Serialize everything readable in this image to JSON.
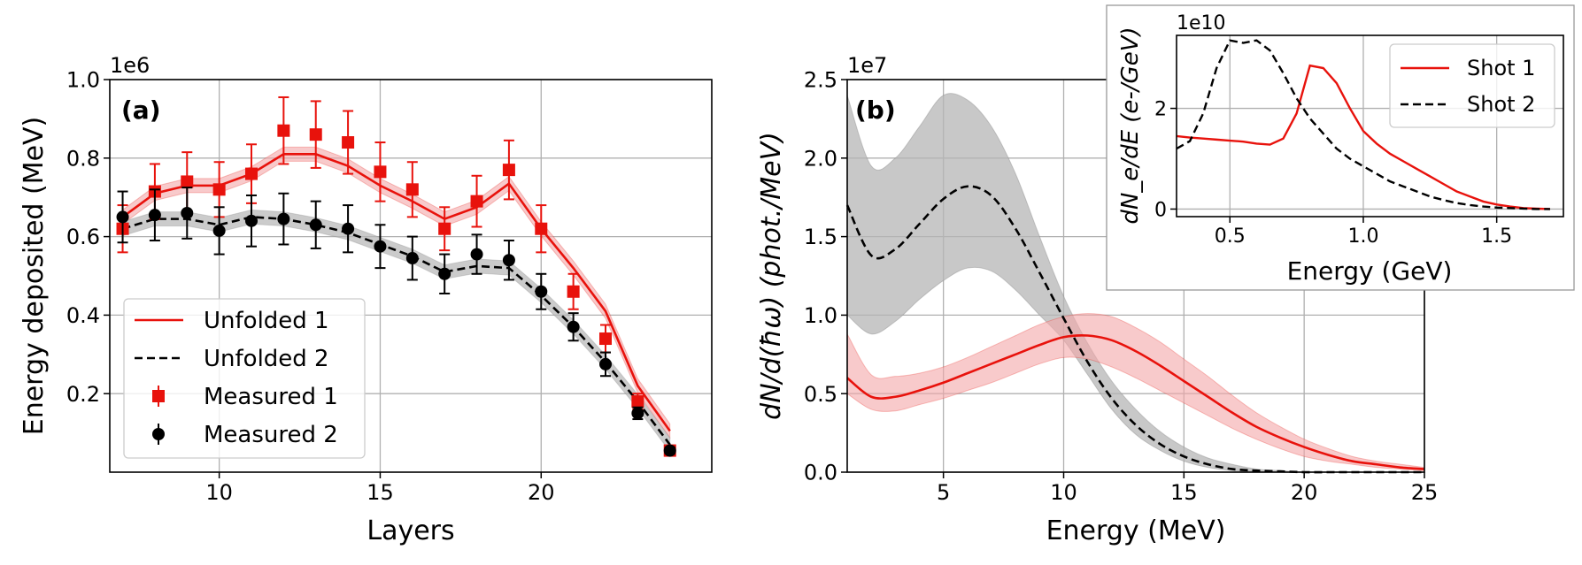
{
  "colors": {
    "red": "#e8120c",
    "red_band": "#f4a7a9",
    "black": "#000000",
    "gray_band": "#b5b5b5",
    "grid": "#b0b0b0"
  },
  "chart_data": [
    {
      "id": "panel-a",
      "type": "line",
      "panel_label": "(a)",
      "xlabel": "Layers",
      "ylabel": "Energy deposited (MeV)",
      "y_offset": "1e6",
      "xlim": [
        6.6,
        25.3
      ],
      "ylim": [
        0.0,
        1.0
      ],
      "xticks": [
        10,
        15,
        20
      ],
      "yticks": [
        0.2,
        0.4,
        0.6,
        0.8,
        1.0
      ],
      "ytick_labels": [
        "0.2",
        "0.4",
        "0.6",
        "0.8",
        "1.0"
      ],
      "legend": [
        "Unfolded 1",
        "Unfolded 2",
        "Measured 1",
        "Measured 2"
      ],
      "legend_position": "lower-left",
      "x": [
        7,
        8,
        9,
        10,
        11,
        12,
        13,
        14,
        15,
        16,
        17,
        18,
        19,
        20,
        21,
        22,
        23,
        24
      ],
      "unfolded_1": [
        0.65,
        0.71,
        0.73,
        0.73,
        0.76,
        0.81,
        0.81,
        0.78,
        0.73,
        0.69,
        0.645,
        0.675,
        0.735,
        0.62,
        0.52,
        0.41,
        0.22,
        0.105
      ],
      "unfolded_1_band": 0.018,
      "unfolded_2": [
        0.62,
        0.645,
        0.645,
        0.63,
        0.65,
        0.645,
        0.63,
        0.61,
        0.58,
        0.55,
        0.51,
        0.525,
        0.52,
        0.45,
        0.37,
        0.28,
        0.18,
        0.07
      ],
      "unfolded_2_band": 0.018,
      "measured_1": [
        0.62,
        0.715,
        0.74,
        0.72,
        0.76,
        0.87,
        0.86,
        0.84,
        0.765,
        0.72,
        0.62,
        0.69,
        0.77,
        0.62,
        0.46,
        0.34,
        0.18,
        0.055
      ],
      "measured_1_err": [
        0.06,
        0.07,
        0.075,
        0.07,
        0.075,
        0.085,
        0.085,
        0.08,
        0.075,
        0.07,
        0.055,
        0.065,
        0.075,
        0.06,
        0.045,
        0.035,
        0.02,
        0.01
      ],
      "measured_2": [
        0.65,
        0.655,
        0.66,
        0.615,
        0.64,
        0.645,
        0.63,
        0.62,
        0.575,
        0.545,
        0.505,
        0.555,
        0.54,
        0.46,
        0.37,
        0.275,
        0.15,
        0.055
      ],
      "measured_2_err": [
        0.065,
        0.065,
        0.065,
        0.06,
        0.065,
        0.065,
        0.06,
        0.06,
        0.055,
        0.055,
        0.05,
        0.05,
        0.05,
        0.045,
        0.035,
        0.03,
        0.015,
        0.008
      ]
    },
    {
      "id": "panel-b",
      "type": "line",
      "panel_label": "(b)",
      "xlabel": "Energy (MeV)",
      "ylabel": "dN/d(ħω) (phot./MeV)",
      "y_offset": "1e7",
      "xlim": [
        1,
        25
      ],
      "ylim": [
        0,
        2.5
      ],
      "xticks": [
        5,
        10,
        15,
        20,
        25
      ],
      "yticks": [
        0.0,
        0.5,
        1.0,
        1.5,
        2.0,
        2.5
      ],
      "ytick_labels": [
        "0.0",
        "0.5",
        "1.0",
        "1.5",
        "2.0",
        "2.5"
      ],
      "x": [
        1,
        2,
        3,
        4,
        5,
        6,
        7,
        8,
        9,
        10,
        11,
        12,
        13,
        14,
        15,
        16,
        17,
        18,
        19,
        20,
        21,
        22,
        23,
        24,
        25
      ],
      "shot_1": [
        0.6,
        0.48,
        0.48,
        0.52,
        0.57,
        0.63,
        0.69,
        0.75,
        0.81,
        0.86,
        0.87,
        0.84,
        0.77,
        0.68,
        0.58,
        0.48,
        0.38,
        0.29,
        0.22,
        0.16,
        0.11,
        0.07,
        0.05,
        0.03,
        0.02
      ],
      "shot_1_lower": [
        0.5,
        0.4,
        0.39,
        0.43,
        0.47,
        0.52,
        0.57,
        0.63,
        0.69,
        0.73,
        0.72,
        0.67,
        0.6,
        0.52,
        0.44,
        0.36,
        0.28,
        0.21,
        0.15,
        0.1,
        0.07,
        0.05,
        0.03,
        0.02,
        0.01
      ],
      "shot_1_upper": [
        0.88,
        0.62,
        0.61,
        0.63,
        0.67,
        0.73,
        0.8,
        0.87,
        0.94,
        0.99,
        1.01,
        0.99,
        0.92,
        0.83,
        0.72,
        0.61,
        0.49,
        0.38,
        0.29,
        0.21,
        0.15,
        0.1,
        0.07,
        0.05,
        0.03
      ],
      "shot_2": [
        1.7,
        1.38,
        1.42,
        1.58,
        1.74,
        1.82,
        1.76,
        1.55,
        1.27,
        0.98,
        0.7,
        0.47,
        0.3,
        0.18,
        0.1,
        0.05,
        0.02,
        0.01,
        0.005,
        0.0,
        0.0,
        0.0,
        0.0,
        0.0,
        0.0
      ],
      "shot_2_lower": [
        1.0,
        0.88,
        0.96,
        1.1,
        1.22,
        1.3,
        1.28,
        1.16,
        1.0,
        0.84,
        0.62,
        0.4,
        0.24,
        0.14,
        0.07,
        0.03,
        0.01,
        0.005,
        0.0,
        0.0,
        0.0,
        0.0,
        0.0,
        0.0,
        0.0
      ],
      "shot_2_upper": [
        2.4,
        1.95,
        2.0,
        2.2,
        2.4,
        2.37,
        2.2,
        1.9,
        1.5,
        1.12,
        0.82,
        0.58,
        0.4,
        0.26,
        0.16,
        0.09,
        0.05,
        0.02,
        0.01,
        0.0,
        0.0,
        0.0,
        0.0,
        0.0,
        0.0
      ]
    },
    {
      "id": "inset",
      "type": "line",
      "xlabel": "Energy (GeV)",
      "ylabel": "dN_e/dE (e-/GeV)",
      "y_offset": "1e10",
      "xlim": [
        0.3,
        1.75
      ],
      "ylim": [
        -0.15,
        3.45
      ],
      "xticks": [
        0.5,
        1.0,
        1.5
      ],
      "xtick_labels": [
        "0.5",
        "1.0",
        "1.5"
      ],
      "yticks": [
        0,
        2
      ],
      "ytick_labels": [
        "0",
        "2"
      ],
      "legend": [
        "Shot 1",
        "Shot 2"
      ],
      "legend_position": "upper-right",
      "x": [
        0.3,
        0.35,
        0.4,
        0.45,
        0.5,
        0.55,
        0.6,
        0.65,
        0.7,
        0.75,
        0.8,
        0.85,
        0.9,
        0.95,
        1.0,
        1.05,
        1.1,
        1.15,
        1.2,
        1.25,
        1.3,
        1.35,
        1.4,
        1.45,
        1.5,
        1.55,
        1.6,
        1.65,
        1.7
      ],
      "shot_1": [
        1.45,
        1.42,
        1.4,
        1.38,
        1.36,
        1.34,
        1.3,
        1.28,
        1.4,
        1.9,
        2.85,
        2.8,
        2.5,
        2.0,
        1.55,
        1.3,
        1.1,
        0.95,
        0.8,
        0.65,
        0.5,
        0.35,
        0.25,
        0.15,
        0.09,
        0.05,
        0.02,
        0.01,
        0.0
      ],
      "shot_2": [
        1.2,
        1.35,
        1.9,
        2.8,
        3.35,
        3.3,
        3.35,
        3.15,
        2.7,
        2.2,
        1.8,
        1.5,
        1.2,
        1.0,
        0.85,
        0.7,
        0.55,
        0.45,
        0.35,
        0.25,
        0.18,
        0.12,
        0.08,
        0.05,
        0.03,
        0.02,
        0.01,
        0.0,
        0.0
      ]
    }
  ]
}
